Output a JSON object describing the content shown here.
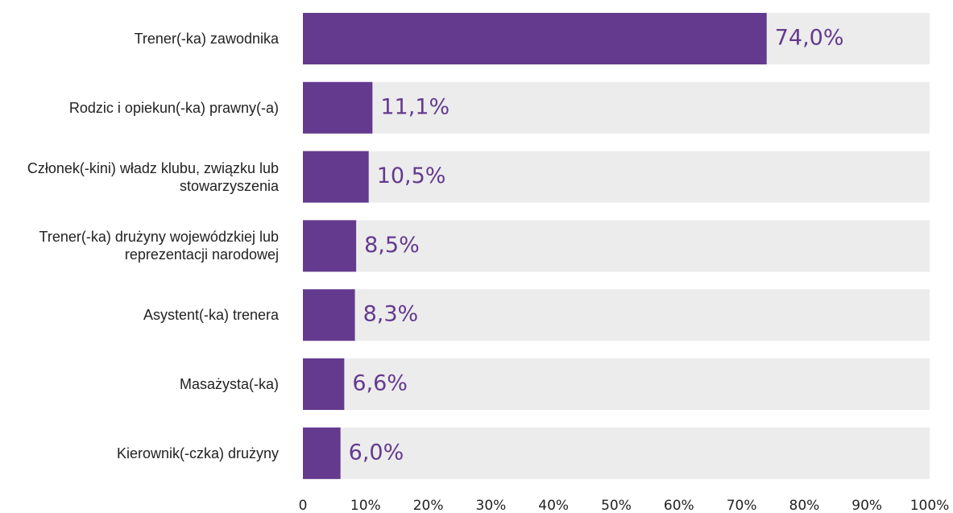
{
  "chart_data": {
    "type": "bar",
    "orientation": "horizontal",
    "categories": [
      "Trener(-ka) zawodnika",
      "Rodzic i opiekun(-ka) prawny(-a)",
      "Członek(-kini) władz klubu, związku lub stowarzyszenia",
      "Trener(-ka) drużyny wojewódzkiej lub reprezentacji narodowej",
      "Asystent(-ka) trenera",
      "Masażysta(-ka)",
      "Kierownik(-czka) drużyny"
    ],
    "values": [
      74.0,
      11.1,
      10.5,
      8.5,
      8.3,
      6.6,
      6.0
    ],
    "value_labels": [
      "74,0%",
      "11,1%",
      "10,5%",
      "8,5%",
      "8,3%",
      "6,6%",
      "6,0%"
    ],
    "color": "#643a8e",
    "background_color": "#ececec",
    "xlim": [
      0,
      100
    ],
    "xticks": [
      0,
      {
        "value": 10,
        "label": "10%"
      },
      {
        "value": 20,
        "label": "20%"
      },
      {
        "value": 30,
        "label": "30%"
      },
      {
        "value": 40,
        "label": "40%"
      },
      {
        "value": 50,
        "label": "50%"
      },
      {
        "value": 60,
        "label": "60%"
      },
      {
        "value": 70,
        "label": "70%"
      },
      {
        "value": 80,
        "label": "80%"
      },
      {
        "value": 90,
        "label": "90%"
      },
      {
        "value": 100,
        "label": "100%"
      }
    ]
  }
}
